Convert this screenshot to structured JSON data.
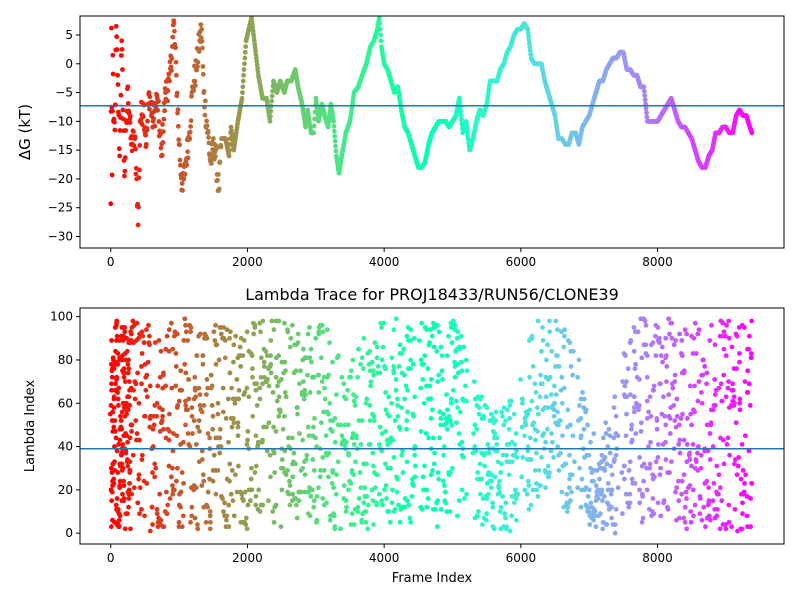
{
  "chart_data": [
    {
      "type": "scatter",
      "title": "",
      "xlabel": "",
      "ylabel": "ΔG (kT)",
      "xlim": [
        -450,
        9850
      ],
      "ylim": [
        -32,
        8.3
      ],
      "xticks": [
        0,
        2000,
        4000,
        6000,
        8000
      ],
      "xtick_labels": [
        "0",
        "2000",
        "4000",
        "6000",
        "8000"
      ],
      "yticks": [
        5,
        0,
        -5,
        -10,
        -15,
        -20,
        -25,
        -30
      ],
      "ytick_labels": [
        "5",
        "0",
        "−5",
        "−10",
        "−15",
        "−20",
        "−25",
        "−30"
      ],
      "hline": -7.3,
      "hline_color": "#1f77b4",
      "colormap": "rainbow (red at first frame → violet at last frame)",
      "grid": false,
      "series": [
        {
          "points": [
            [
              0,
              -24.3
            ],
            [
              10,
              6.2
            ],
            [
              20,
              -19.3
            ],
            [
              30,
              1.5
            ],
            [
              40,
              -10
            ],
            [
              60,
              -11.5
            ],
            [
              80,
              6.5
            ],
            [
              100,
              -2
            ],
            [
              130,
              -16
            ],
            [
              160,
              4
            ],
            [
              200,
              -19.5
            ],
            [
              250,
              -4
            ],
            [
              300,
              -14
            ],
            [
              350,
              -13
            ],
            [
              380,
              -20
            ],
            [
              400,
              -28
            ],
            [
              430,
              -10
            ],
            [
              480,
              -7
            ],
            [
              520,
              -14
            ],
            [
              560,
              -5
            ],
            [
              620,
              -10
            ],
            [
              680,
              -6
            ],
            [
              740,
              -16
            ],
            [
              800,
              -5
            ],
            [
              860,
              -3
            ],
            [
              900,
              3
            ],
            [
              920,
              7.5
            ],
            [
              960,
              -2
            ],
            [
              1000,
              -14
            ],
            [
              1050,
              -22
            ],
            [
              1100,
              -17
            ],
            [
              1150,
              -12
            ],
            [
              1200,
              -4
            ],
            [
              1250,
              -1
            ],
            [
              1300,
              4
            ],
            [
              1330,
              6
            ],
            [
              1360,
              -5
            ],
            [
              1420,
              -12
            ],
            [
              1460,
              -17
            ],
            [
              1520,
              -14
            ],
            [
              1580,
              -22
            ],
            [
              1620,
              -13
            ],
            [
              1680,
              -13
            ],
            [
              1730,
              -16
            ],
            [
              1760,
              -11
            ],
            [
              1800,
              -15
            ],
            [
              1860,
              -10
            ],
            [
              1920,
              -6
            ],
            [
              1980,
              4
            ],
            [
              2020,
              6
            ],
            [
              2060,
              8
            ],
            [
              2100,
              4
            ],
            [
              2160,
              -2
            ],
            [
              2220,
              -6
            ],
            [
              2280,
              -6
            ],
            [
              2330,
              -10
            ],
            [
              2380,
              -3
            ],
            [
              2430,
              -5
            ],
            [
              2480,
              -3
            ],
            [
              2540,
              -5
            ],
            [
              2580,
              -3
            ],
            [
              2640,
              -3
            ],
            [
              2700,
              -1
            ],
            [
              2740,
              -4
            ],
            [
              2800,
              -7
            ],
            [
              2850,
              -11
            ],
            [
              2880,
              -8
            ],
            [
              2930,
              -12
            ],
            [
              2970,
              -12
            ],
            [
              3000,
              -6
            ],
            [
              3040,
              -10
            ],
            [
              3090,
              -7
            ],
            [
              3130,
              -9
            ],
            [
              3180,
              -11
            ],
            [
              3220,
              -7
            ],
            [
              3260,
              -10
            ],
            [
              3300,
              -16
            ],
            [
              3340,
              -19
            ],
            [
              3380,
              -16
            ],
            [
              3440,
              -12
            ],
            [
              3500,
              -10
            ],
            [
              3560,
              -5
            ],
            [
              3620,
              -4
            ],
            [
              3680,
              -2
            ],
            [
              3740,
              0
            ],
            [
              3800,
              3
            ],
            [
              3850,
              4
            ],
            [
              3900,
              6
            ],
            [
              3930,
              8
            ],
            [
              3960,
              3
            ],
            [
              4000,
              0
            ],
            [
              4050,
              -1
            ],
            [
              4100,
              -3
            ],
            [
              4150,
              -5
            ],
            [
              4200,
              -4
            ],
            [
              4250,
              -8
            ],
            [
              4300,
              -11
            ],
            [
              4350,
              -12
            ],
            [
              4400,
              -14
            ],
            [
              4450,
              -16
            ],
            [
              4500,
              -18
            ],
            [
              4550,
              -18
            ],
            [
              4600,
              -17
            ],
            [
              4650,
              -14
            ],
            [
              4700,
              -12
            ],
            [
              4750,
              -11
            ],
            [
              4800,
              -10
            ],
            [
              4850,
              -10
            ],
            [
              4900,
              -10
            ],
            [
              4950,
              -11
            ],
            [
              5000,
              -10
            ],
            [
              5050,
              -9
            ],
            [
              5100,
              -6
            ],
            [
              5150,
              -12
            ],
            [
              5200,
              -10
            ],
            [
              5250,
              -15
            ],
            [
              5300,
              -13
            ],
            [
              5350,
              -10
            ],
            [
              5400,
              -8
            ],
            [
              5450,
              -9
            ],
            [
              5500,
              -7
            ],
            [
              5550,
              -3
            ],
            [
              5600,
              -3
            ],
            [
              5650,
              -3
            ],
            [
              5700,
              -1
            ],
            [
              5750,
              0
            ],
            [
              5800,
              2
            ],
            [
              5850,
              3
            ],
            [
              5900,
              5
            ],
            [
              5950,
              6
            ],
            [
              6000,
              6
            ],
            [
              6050,
              7
            ],
            [
              6100,
              6
            ],
            [
              6150,
              1
            ],
            [
              6200,
              0
            ],
            [
              6250,
              0
            ],
            [
              6300,
              0
            ],
            [
              6350,
              -3
            ],
            [
              6400,
              -5
            ],
            [
              6450,
              -7
            ],
            [
              6500,
              -9
            ],
            [
              6550,
              -13
            ],
            [
              6600,
              -13
            ],
            [
              6650,
              -14
            ],
            [
              6700,
              -14
            ],
            [
              6750,
              -12
            ],
            [
              6800,
              -12
            ],
            [
              6850,
              -14
            ],
            [
              6900,
              -11
            ],
            [
              6950,
              -10
            ],
            [
              7000,
              -9
            ],
            [
              7050,
              -7
            ],
            [
              7100,
              -5
            ],
            [
              7150,
              -3
            ],
            [
              7200,
              -3
            ],
            [
              7250,
              -1
            ],
            [
              7300,
              0
            ],
            [
              7350,
              1
            ],
            [
              7400,
              1
            ],
            [
              7450,
              2
            ],
            [
              7500,
              2
            ],
            [
              7550,
              -1
            ],
            [
              7600,
              -1
            ],
            [
              7650,
              -2
            ],
            [
              7700,
              -2
            ],
            [
              7750,
              -4
            ],
            [
              7800,
              -4
            ],
            [
              7850,
              -10
            ],
            [
              7900,
              -10
            ],
            [
              7950,
              -10
            ],
            [
              8000,
              -10
            ],
            [
              8050,
              -9
            ],
            [
              8100,
              -8
            ],
            [
              8150,
              -7
            ],
            [
              8200,
              -6
            ],
            [
              8250,
              -8
            ],
            [
              8300,
              -10
            ],
            [
              8350,
              -11
            ],
            [
              8400,
              -11
            ],
            [
              8450,
              -12
            ],
            [
              8500,
              -13
            ],
            [
              8550,
              -15
            ],
            [
              8600,
              -17
            ],
            [
              8650,
              -18
            ],
            [
              8700,
              -18
            ],
            [
              8750,
              -16
            ],
            [
              8800,
              -15
            ],
            [
              8850,
              -12
            ],
            [
              8900,
              -12
            ],
            [
              8950,
              -11
            ],
            [
              9000,
              -11
            ],
            [
              9050,
              -12
            ],
            [
              9100,
              -12
            ],
            [
              9150,
              -9
            ],
            [
              9200,
              -8
            ],
            [
              9250,
              -9
            ],
            [
              9300,
              -9
            ],
            [
              9350,
              -11
            ],
            [
              9380,
              -12
            ]
          ]
        }
      ]
    },
    {
      "type": "scatter",
      "title": "Lambda Trace for PROJ18433/RUN56/CLONE39",
      "xlabel": "Frame Index",
      "ylabel": "Lambda Index",
      "xlim": [
        -450,
        9850
      ],
      "ylim": [
        -5,
        104
      ],
      "xticks": [
        0,
        2000,
        4000,
        6000,
        8000
      ],
      "xtick_labels": [
        "0",
        "2000",
        "4000",
        "6000",
        "8000"
      ],
      "yticks": [
        0,
        20,
        40,
        60,
        80,
        100
      ],
      "ytick_labels": [
        "0",
        "20",
        "40",
        "60",
        "80",
        "100"
      ],
      "hline": 39,
      "hline_color": "#1f77b4",
      "colormap": "rainbow (red at first frame → violet at last frame)",
      "grid": false,
      "series": [
        {
          "lambda_range_by_frame": [
            [
              0,
              0,
              98
            ],
            [
              200,
              2,
              99
            ],
            [
              400,
              0,
              99
            ],
            [
              600,
              1,
              99
            ],
            [
              800,
              2,
              99
            ],
            [
              1000,
              1,
              99
            ],
            [
              1200,
              1,
              99
            ],
            [
              1400,
              2,
              99
            ],
            [
              1600,
              0,
              99
            ],
            [
              1800,
              1,
              98
            ],
            [
              2000,
              1,
              99
            ],
            [
              2200,
              2,
              98
            ],
            [
              2400,
              3,
              99
            ],
            [
              2600,
              2,
              98
            ],
            [
              2800,
              3,
              97
            ],
            [
              3000,
              2,
              99
            ],
            [
              3200,
              1,
              99
            ],
            [
              3400,
              1,
              75
            ],
            [
              3600,
              3,
              85
            ],
            [
              3800,
              2,
              95
            ],
            [
              4000,
              5,
              100
            ],
            [
              4200,
              5,
              100
            ],
            [
              4400,
              4,
              99
            ],
            [
              4600,
              5,
              98
            ],
            [
              4800,
              2,
              99
            ],
            [
              5000,
              4,
              99
            ],
            [
              5200,
              10,
              90
            ],
            [
              5400,
              2,
              65
            ],
            [
              5600,
              1,
              55
            ],
            [
              5800,
              1,
              60
            ],
            [
              6000,
              1,
              70
            ],
            [
              6200,
              15,
              100
            ],
            [
              6400,
              12,
              100
            ],
            [
              6600,
              10,
              99
            ],
            [
              6800,
              10,
              95
            ],
            [
              7000,
              1,
              50
            ],
            [
              7200,
              0,
              45
            ],
            [
              7400,
              0,
              70
            ],
            [
              7600,
              5,
              99
            ],
            [
              7800,
              5,
              99
            ],
            [
              8000,
              2,
              99
            ],
            [
              8200,
              5,
              99
            ],
            [
              8400,
              1,
              99
            ],
            [
              8600,
              1,
              99
            ],
            [
              8800,
              1,
              99
            ],
            [
              9000,
              1,
              99
            ],
            [
              9200,
              1,
              99
            ],
            [
              9380,
              1,
              99
            ]
          ]
        }
      ]
    }
  ]
}
